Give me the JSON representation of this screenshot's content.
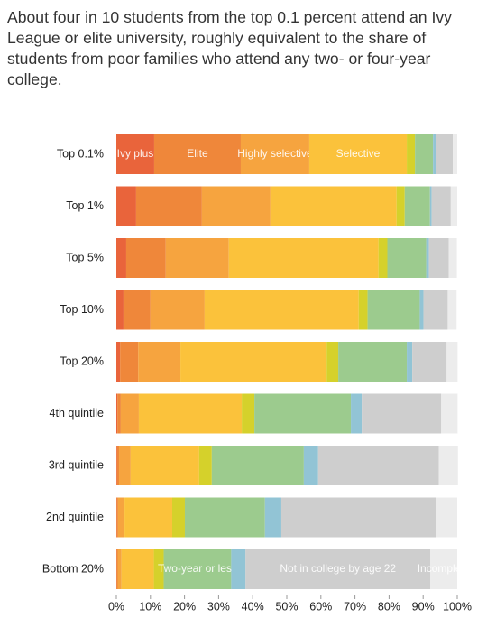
{
  "chart_data": {
    "type": "stacked_barh",
    "title": "About four in 10 students from the top 0.1 percent attend an Ivy League or elite university, roughly equivalent to the share of students from poor families who attend any two- or four-year college.",
    "categories": [
      "Top 0.1%",
      "Top 1%",
      "Top 5%",
      "Top 10%",
      "Top 20%",
      "4th quintile",
      "3rd quintile",
      "2nd quintile",
      "Bottom 20%"
    ],
    "series": [
      {
        "name": "Ivy plus",
        "color": "#e9643b",
        "values": [
          11.1,
          5.8,
          2.9,
          2.1,
          1.1,
          0.3,
          0.2,
          0.1,
          0.1
        ]
      },
      {
        "name": "Elite",
        "color": "#ef873a",
        "values": [
          25.4,
          19.3,
          11.6,
          7.9,
          5.3,
          1.0,
          0.6,
          0.4,
          0.3
        ]
      },
      {
        "name": "Highly selective",
        "color": "#f6a43f",
        "values": [
          20.1,
          20.1,
          18.5,
          15.9,
          12.4,
          5.3,
          3.4,
          1.9,
          1.1
        ]
      },
      {
        "name": "Selective",
        "color": "#fbc23b",
        "values": [
          28.6,
          37,
          43.9,
          45.2,
          42.9,
          30.2,
          20.1,
          14,
          9.5
        ]
      },
      {
        "name": null,
        "color": "#d5d12b",
        "values": [
          2.4,
          2.4,
          2.6,
          2.6,
          3.4,
          3.7,
          3.7,
          3.7,
          2.9
        ]
      },
      {
        "name": "Two-year or less",
        "color": "#9ccb8e",
        "values": [
          5.3,
          7.4,
          11.4,
          15.3,
          20.1,
          28.3,
          27,
          23.5,
          19.8
        ]
      },
      {
        "name": null,
        "color": "#92c4d5",
        "values": [
          0.8,
          0.5,
          0.8,
          1.1,
          1.6,
          3.2,
          4.2,
          4.8,
          4.2
        ]
      },
      {
        "name": "Not in college by age 22",
        "color": "#cecece",
        "values": [
          5,
          5.6,
          5.8,
          7.1,
          10.1,
          23.3,
          35.4,
          45.5,
          54.2
        ]
      },
      {
        "name": "Incomplete",
        "color": "#ececec",
        "values": [
          1.3,
          1.9,
          2.4,
          2.6,
          3.2,
          4.8,
          5.6,
          6.1,
          7.9
        ]
      }
    ],
    "xlim": [
      0,
      100
    ],
    "xticks": [
      {
        "value": 0,
        "label": "0%"
      },
      {
        "value": 10,
        "label": "10%"
      },
      {
        "value": 20,
        "label": "20%"
      },
      {
        "value": 30,
        "label": "30%"
      },
      {
        "value": 40,
        "label": "40%"
      },
      {
        "value": 50,
        "label": "50%"
      },
      {
        "value": 60,
        "label": "60%"
      },
      {
        "value": 70,
        "label": "70%"
      },
      {
        "value": 80,
        "label": "80%"
      },
      {
        "value": 90,
        "label": "90%"
      },
      {
        "value": 100,
        "label": "100%"
      }
    ]
  }
}
